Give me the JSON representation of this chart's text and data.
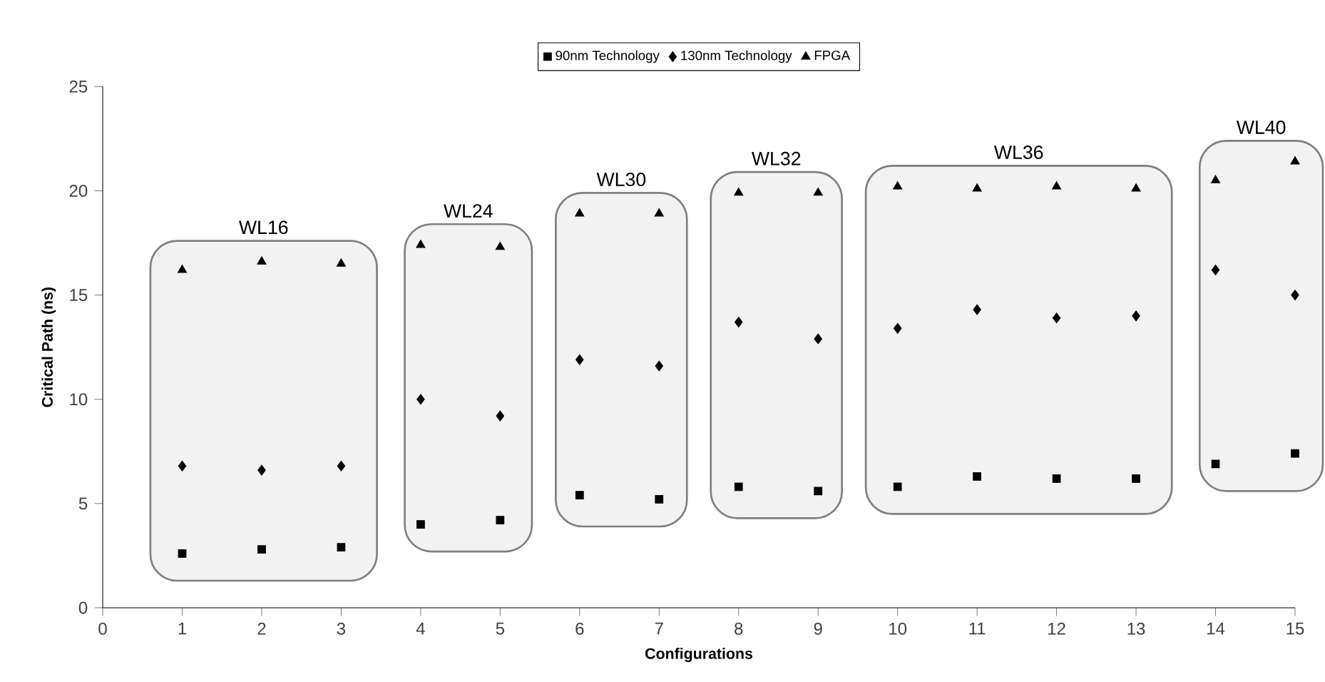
{
  "chart_data": {
    "type": "scatter",
    "xlabel": "Configurations",
    "ylabel": "Critical Path (ns)",
    "x": [
      1,
      2,
      3,
      4,
      5,
      6,
      7,
      8,
      9,
      10,
      11,
      12,
      13,
      14,
      15
    ],
    "series": [
      {
        "name": "90nm Technology",
        "color": "#000000",
        "marker": "square",
        "values": [
          2.6,
          2.8,
          2.9,
          4.0,
          4.2,
          5.4,
          5.2,
          5.8,
          5.6,
          5.8,
          6.3,
          6.2,
          6.2,
          6.9,
          7.4
        ]
      },
      {
        "name": "130nm Technology",
        "color": "#000000",
        "marker": "diamond",
        "values": [
          6.8,
          6.6,
          6.8,
          10.0,
          9.2,
          11.9,
          11.6,
          13.7,
          12.9,
          13.4,
          14.3,
          13.9,
          14.0,
          16.2,
          15.0
        ]
      },
      {
        "name": "FPGA",
        "color": "#000000",
        "marker": "triangle",
        "values": [
          16.2,
          16.6,
          16.5,
          17.4,
          17.3,
          18.9,
          18.9,
          19.9,
          19.9,
          20.2,
          20.1,
          20.2,
          20.1,
          20.5,
          21.4
        ]
      }
    ],
    "bands": [
      {
        "axis": "x",
        "from": 0.6,
        "to": 3.45,
        "label": "WL16",
        "color": "#f2f2f2"
      },
      {
        "axis": "x",
        "from": 3.8,
        "to": 5.4,
        "label": "WL24",
        "color": "#f2f2f2"
      },
      {
        "axis": "x",
        "from": 5.7,
        "to": 7.35,
        "label": "WL30",
        "color": "#f2f2f2"
      },
      {
        "axis": "x",
        "from": 7.65,
        "to": 9.3,
        "label": "WL32",
        "color": "#f2f2f2"
      },
      {
        "axis": "x",
        "from": 9.6,
        "to": 13.45,
        "label": "WL36",
        "color": "#f2f2f2"
      },
      {
        "axis": "x",
        "from": 13.8,
        "to": 15.35,
        "label": "WL40",
        "color": "#f2f2f2"
      }
    ],
    "xlim": [
      0,
      15
    ],
    "xticks": [
      0,
      1,
      2,
      3,
      4,
      5,
      6,
      7,
      8,
      9,
      10,
      11,
      12,
      13,
      14,
      15
    ],
    "ylim": [
      0,
      25
    ],
    "yticks": [
      0,
      5,
      10,
      15,
      20,
      25
    ],
    "grid": false,
    "legend": "top"
  }
}
